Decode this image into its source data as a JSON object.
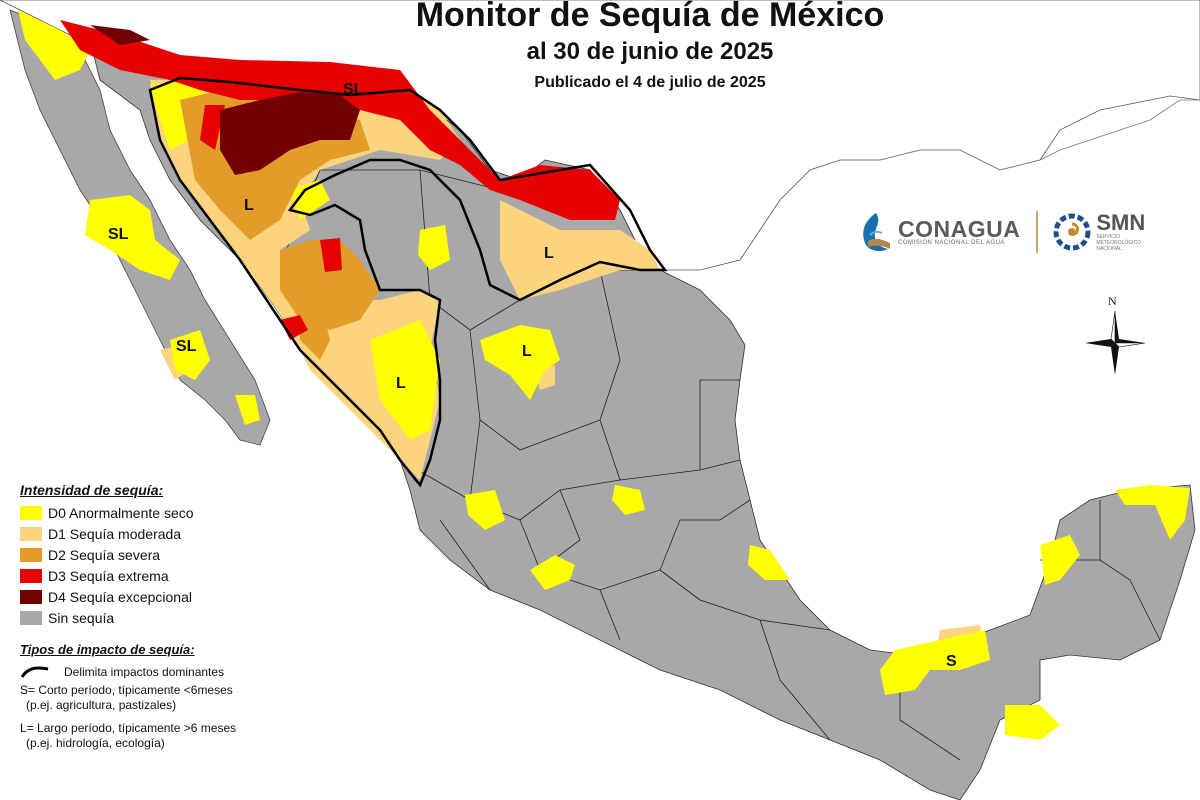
{
  "header": {
    "title": "Monitor de Sequía de México",
    "date": "al 30 de junio de 2025",
    "published": "Publicado el 4 de julio de 2025"
  },
  "legend": {
    "intensity_heading": "Intensidad de sequía:",
    "items": [
      {
        "label": "D0 Anormalmente seco",
        "color": "#ffff00"
      },
      {
        "label": "D1 Sequía moderada",
        "color": "#fcd37f"
      },
      {
        "label": "D2 Sequía severa",
        "color": "#e39c2a"
      },
      {
        "label": "D3 Sequía extrema",
        "color": "#e60000"
      },
      {
        "label": "D4 Sequía excepcional",
        "color": "#730000"
      },
      {
        "label": "Sin sequía",
        "color": "#a8a8a8"
      }
    ],
    "impact_heading": "Tipos de impacto de sequía:",
    "impact_line_label": "Delimita impactos dominantes",
    "short_term": "S= Corto período, típicamente <6meses",
    "short_term_example": "(p.ej. agricultura, pastizales)",
    "long_term": "L= Largo período, típicamente >6 meses",
    "long_term_example": "(p.ej. hidrología, ecología)"
  },
  "logos": {
    "conagua": "CONAGUA",
    "conagua_sub": "COMISIÓN NACIONAL DEL AGUA",
    "smn": "SMN",
    "smn_sub1": "SERVICIO",
    "smn_sub2": "METEOROLÓGICO",
    "smn_sub3": "NACIONAL"
  },
  "compass": {
    "north": "N"
  },
  "map_labels": {
    "sl_north": "SL",
    "sl_bcs_north": "SL",
    "sl_bcs_south": "SL",
    "l_sonora": "L",
    "l_tamaulipas": "L",
    "l_durango": "L",
    "l_sinaloa": "L",
    "s_tabasco": "S"
  }
}
